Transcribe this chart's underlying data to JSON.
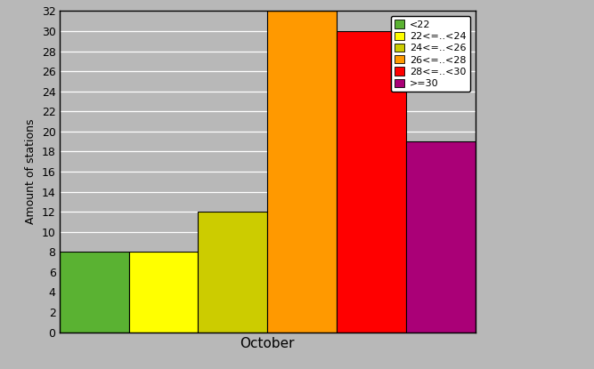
{
  "xlabel": "October",
  "ylabel": "Amount of stations",
  "categories": [
    "<22",
    "22<=..<24",
    "24<=..<26",
    "26<=..<28",
    "28<=..<30",
    ">=30"
  ],
  "values": [
    8,
    8,
    12,
    32,
    30,
    19
  ],
  "colors": [
    "#5ab232",
    "#ffff00",
    "#cccc00",
    "#ff9900",
    "#ff0000",
    "#aa0077"
  ],
  "ylim": [
    0,
    32
  ],
  "yticks": [
    0,
    2,
    4,
    6,
    8,
    10,
    12,
    14,
    16,
    18,
    20,
    22,
    24,
    26,
    28,
    30,
    32
  ],
  "background_color": "#b8b8b8",
  "plot_background": "#b8b8b8",
  "bar_edge_color": "#000000",
  "legend_labels": [
    "<22",
    "22<=..<24",
    "24<=..<26",
    "26<=..<28",
    "28<=..<30",
    ">=30"
  ],
  "legend_colors": [
    "#5ab232",
    "#ffff00",
    "#cccc00",
    "#ff9900",
    "#ff0000",
    "#aa0077"
  ]
}
